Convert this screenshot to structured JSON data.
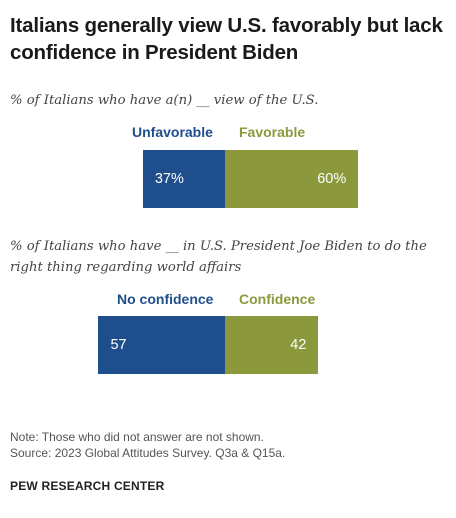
{
  "header": {
    "title": "Italians generally view U.S. favorably but lack confidence in President Biden"
  },
  "colors": {
    "negative": "#1f4e8c",
    "positive": "#8c983c"
  },
  "chart_data": [
    {
      "type": "bar",
      "orientation": "horizontal-stacked",
      "subtitle": "% of Italians who have a(n) __ view of the U.S.",
      "series": [
        {
          "name": "Unfavorable",
          "value": 37,
          "label": "37%"
        },
        {
          "name": "Favorable",
          "value": 60,
          "label": "60%"
        }
      ]
    },
    {
      "type": "bar",
      "orientation": "horizontal-stacked",
      "subtitle": "% of Italians who have __ in U.S. President Joe Biden to do the right thing regarding world affairs",
      "series": [
        {
          "name": "No confidence",
          "value": 57,
          "label": "57"
        },
        {
          "name": "Confidence",
          "value": 42,
          "label": "42"
        }
      ]
    }
  ],
  "notes": {
    "note": "Note: Those who did not answer are not shown.",
    "source": "Source: 2023 Global Attitudes Survey. Q3a & Q15a."
  },
  "footer": "PEW RESEARCH CENTER"
}
